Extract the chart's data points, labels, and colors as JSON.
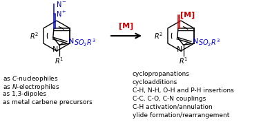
{
  "background_color": "#ffffff",
  "blue": "#0000cc",
  "black": "#000000",
  "red": "#cc0000",
  "left_texts": [
    "as $\\it{C}$-nucleophiles",
    "as $\\it{N}$-electrophiles",
    "as 1,3-dipoles",
    "as metal carbene precursors"
  ],
  "right_texts": [
    "cyclopropanations",
    "cycloadditions",
    "C-H, N-H, O-H and P-H insertions",
    "C-C, C-O, C-N couplings",
    "C-H activation/annulation",
    "ylide formation/rearrangement"
  ]
}
